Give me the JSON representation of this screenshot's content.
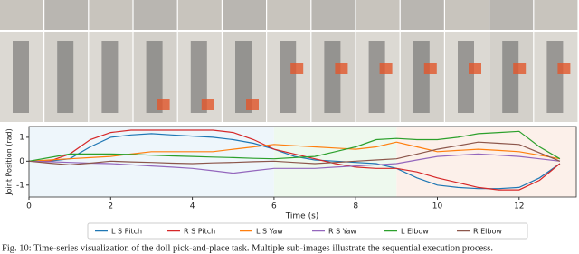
{
  "chart_data": {
    "type": "line",
    "y_label": "Joint Position (rad)",
    "x_label": "Time (s)",
    "x": [
      0,
      0.5,
      1,
      1.5,
      2,
      2.5,
      3,
      3.5,
      4,
      4.5,
      5,
      5.5,
      6,
      6.5,
      7,
      7.5,
      8,
      8.5,
      9,
      9.5,
      10,
      10.5,
      11,
      11.5,
      12,
      12.5,
      13
    ],
    "xlim": [
      0,
      13.4
    ],
    "xticks": [
      0,
      2,
      4,
      6,
      8,
      10,
      12
    ],
    "ylim": [
      -1.5,
      1.45
    ],
    "yticks": [
      -1,
      0,
      1
    ],
    "regions": [
      {
        "start": 0,
        "end": 6,
        "color": "#eef6fb"
      },
      {
        "start": 6,
        "end": 9,
        "color": "#eef9ee"
      },
      {
        "start": 9,
        "end": 13.4,
        "color": "#fcf0ea"
      }
    ],
    "series": [
      {
        "name": "L S Pitch",
        "color": "#1f77b4",
        "values": [
          0,
          0,
          0.1,
          0.6,
          1.0,
          1.1,
          1.15,
          1.1,
          1.05,
          1.0,
          0.9,
          0.75,
          0.5,
          0.2,
          0.05,
          0,
          -0.05,
          -0.1,
          -0.3,
          -0.7,
          -1.0,
          -1.1,
          -1.15,
          -1.15,
          -1.1,
          -0.7,
          -0.1
        ]
      },
      {
        "name": "R S Pitch",
        "color": "#d62728",
        "values": [
          0,
          0,
          0.3,
          0.9,
          1.2,
          1.3,
          1.3,
          1.3,
          1.3,
          1.3,
          1.2,
          0.9,
          0.5,
          0.3,
          0.1,
          -0.1,
          -0.25,
          -0.3,
          -0.3,
          -0.45,
          -0.7,
          -0.9,
          -1.1,
          -1.2,
          -1.2,
          -0.8,
          -0.1
        ]
      },
      {
        "name": "L S Yaw",
        "color": "#ff7f0e",
        "values": [
          0,
          0.05,
          0.1,
          0.15,
          0.2,
          0.3,
          0.4,
          0.4,
          0.4,
          0.4,
          0.5,
          0.6,
          0.7,
          0.65,
          0.6,
          0.55,
          0.5,
          0.6,
          0.8,
          0.6,
          0.4,
          0.45,
          0.5,
          0.45,
          0.4,
          0.25,
          0.1
        ]
      },
      {
        "name": "R S Yaw",
        "color": "#9467bd",
        "values": [
          0,
          -0.02,
          -0.05,
          -0.08,
          -0.1,
          -0.15,
          -0.2,
          -0.25,
          -0.3,
          -0.4,
          -0.5,
          -0.4,
          -0.3,
          -0.3,
          -0.3,
          -0.25,
          -0.2,
          -0.15,
          -0.1,
          0.05,
          0.2,
          0.25,
          0.3,
          0.25,
          0.2,
          0.1,
          0
        ]
      },
      {
        "name": "L Elbow",
        "color": "#2ca02c",
        "values": [
          0,
          0.15,
          0.3,
          0.3,
          0.3,
          0.28,
          0.25,
          0.22,
          0.2,
          0.17,
          0.15,
          0.12,
          0.1,
          0.15,
          0.2,
          0.4,
          0.6,
          0.9,
          0.95,
          0.9,
          0.9,
          1.0,
          1.15,
          1.2,
          1.25,
          0.6,
          0.1
        ]
      },
      {
        "name": "R Elbow",
        "color": "#8c564b",
        "values": [
          0,
          -0.08,
          -0.15,
          -0.08,
          0,
          -0.03,
          -0.05,
          -0.08,
          -0.1,
          -0.07,
          -0.05,
          -0.02,
          0,
          -0.05,
          -0.1,
          -0.05,
          0,
          0.05,
          0.1,
          0.3,
          0.5,
          0.65,
          0.8,
          0.75,
          0.7,
          0.35,
          0
        ]
      }
    ]
  },
  "caption": "Fig. 10: Time-series visualization of the doll pick-and-place task. Multiple sub-images illustrate the sequential execution process."
}
